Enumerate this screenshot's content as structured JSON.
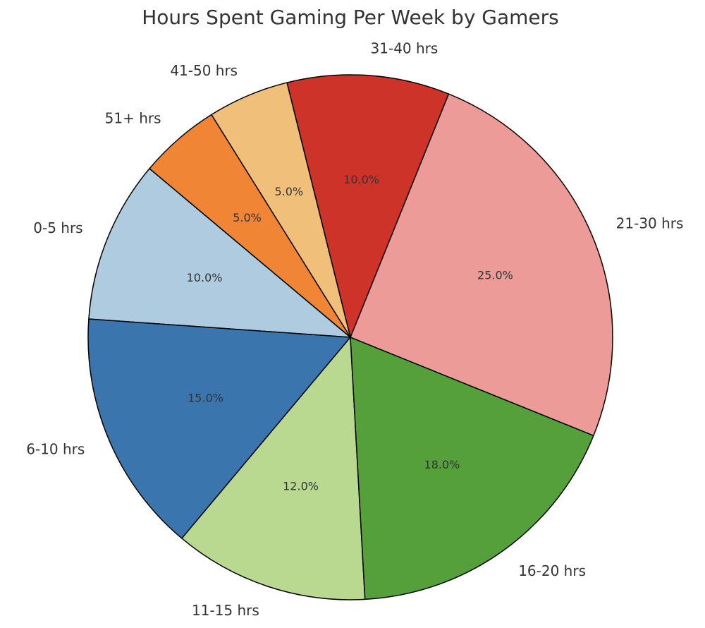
{
  "chart_data": {
    "type": "pie",
    "title": "Hours Spent Gaming Per Week by Gamers",
    "categories": [
      "0-5 hrs",
      "6-10 hrs",
      "11-15 hrs",
      "16-20 hrs",
      "21-30 hrs",
      "31-40 hrs",
      "41-50 hrs",
      "51+ hrs"
    ],
    "values": [
      10,
      15,
      12,
      18,
      25,
      10,
      5,
      5
    ],
    "value_labels": [
      "10.0%",
      "15.0%",
      "12.0%",
      "18.0%",
      "25.0%",
      "10.0%",
      "5.0%",
      "5.0%"
    ],
    "colors": [
      "#aecbdf",
      "#3a75ad",
      "#b8d98f",
      "#55a03b",
      "#ec9b98",
      "#cd3329",
      "#f0c07b",
      "#ef8535"
    ]
  }
}
